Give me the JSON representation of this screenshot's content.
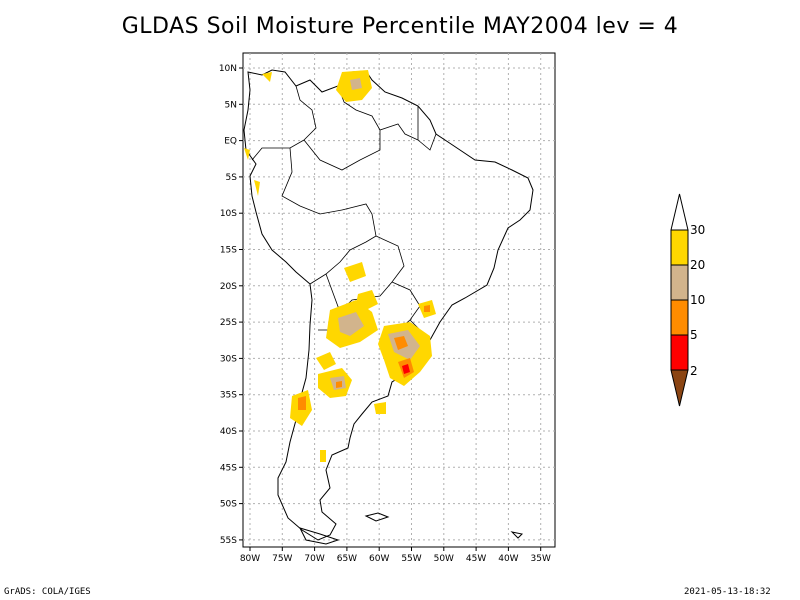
{
  "title": "GLDAS Soil Moisture Percentile MAY2004 lev = 4",
  "map": {
    "lat_labels": [
      "10N",
      "5N",
      "EQ",
      "5S",
      "10S",
      "15S",
      "20S",
      "25S",
      "30S",
      "35S",
      "40S",
      "45S",
      "50S",
      "55S"
    ],
    "lon_labels": [
      "80W",
      "75W",
      "70W",
      "65W",
      "60W",
      "55W",
      "50W",
      "45W",
      "40W",
      "35W"
    ]
  },
  "colorbar": {
    "labels": [
      "30",
      "20",
      "10",
      "5",
      "2"
    ],
    "colors": {
      "above_30": "#ffffff",
      "20_30": "#ffd700",
      "10_20": "#d2b48c",
      "5_10": "#ff8c00",
      "2_5": "#ff0000",
      "below_2": "#8b4513"
    }
  },
  "footer": {
    "credit": "GrADS: COLA/IGES",
    "timestamp": "2021-05-13-18:32"
  }
}
